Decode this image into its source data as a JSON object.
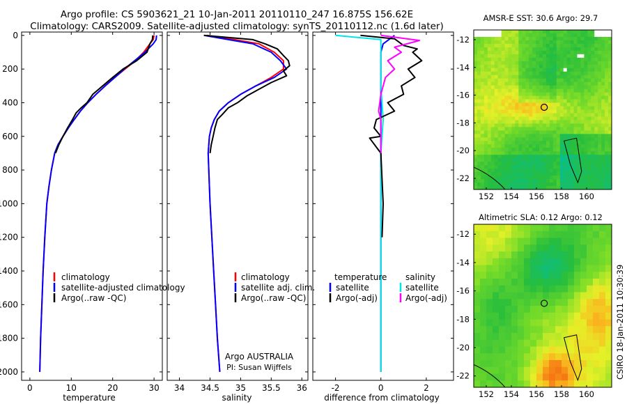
{
  "header": {
    "line1": "Argo profile: CS 5903621_21 10-Jan-2011 20110110_247 16.875S 156.62E",
    "line2": "Climatology: CARS2009. Satellite-adjusted climatology: synTS_20110112.nc (1.6d later)"
  },
  "colors": {
    "climatology": "#ff0000",
    "satellite": "#0000ff",
    "argo": "#000000",
    "salinity_satellite": "#00e5e5",
    "salinity_argo": "#ff00ff"
  },
  "depth_axis": {
    "ticks": [
      "0",
      "200",
      "400",
      "600",
      "800",
      "1000",
      "1200",
      "1400",
      "1600",
      "1800",
      "2000"
    ],
    "ylim": [
      2050,
      -20
    ]
  },
  "chart_data": [
    {
      "type": "line",
      "id": "temperature",
      "xlabel": "temperature",
      "xlim": [
        -2,
        32
      ],
      "xticks": [
        "0",
        "10",
        "20",
        "30"
      ],
      "xtick_values": [
        0,
        10,
        20,
        30
      ],
      "legend": [
        "climatology",
        "satellite-adjusted climatology",
        "Argo(..raw -QC)"
      ],
      "series": [
        {
          "name": "climatology",
          "color": "#ff0000",
          "points": [
            [
              30.0,
              0
            ],
            [
              29.8,
              25
            ],
            [
              29.0,
              50
            ],
            [
              27.5,
              100
            ],
            [
              25.5,
              150
            ],
            [
              23.0,
              200
            ],
            [
              20.5,
              250
            ],
            [
              18.2,
              300
            ],
            [
              16.0,
              350
            ],
            [
              14.0,
              400
            ],
            [
              12.2,
              450
            ],
            [
              10.7,
              500
            ],
            [
              9.3,
              550
            ],
            [
              8.0,
              600
            ],
            [
              6.8,
              650
            ],
            [
              6.0,
              700
            ],
            [
              5.2,
              800
            ],
            [
              4.6,
              900
            ],
            [
              4.1,
              1000
            ],
            [
              3.6,
              1200
            ],
            [
              3.2,
              1400
            ],
            [
              2.9,
              1600
            ],
            [
              2.6,
              1800
            ],
            [
              2.4,
              2000
            ]
          ]
        },
        {
          "name": "satellite-adjusted climatology",
          "color": "#0000ff",
          "points": [
            [
              30.6,
              0
            ],
            [
              30.5,
              25
            ],
            [
              29.8,
              50
            ],
            [
              27.8,
              100
            ],
            [
              25.3,
              150
            ],
            [
              22.8,
              200
            ],
            [
              20.5,
              250
            ],
            [
              18.2,
              300
            ],
            [
              16.0,
              350
            ],
            [
              14.0,
              400
            ],
            [
              12.2,
              450
            ],
            [
              10.7,
              500
            ],
            [
              9.3,
              550
            ],
            [
              8.0,
              600
            ],
            [
              6.8,
              650
            ],
            [
              6.0,
              700
            ],
            [
              5.2,
              800
            ],
            [
              4.6,
              900
            ],
            [
              4.1,
              1000
            ],
            [
              3.6,
              1200
            ],
            [
              3.2,
              1400
            ],
            [
              2.9,
              1600
            ],
            [
              2.6,
              1800
            ],
            [
              2.4,
              2000
            ]
          ]
        },
        {
          "name": "Argo(..raw -QC)",
          "color": "#000000",
          "points": [
            [
              29.7,
              0
            ],
            [
              29.6,
              25
            ],
            [
              29.0,
              50
            ],
            [
              28.3,
              100
            ],
            [
              25.8,
              150
            ],
            [
              22.5,
              200
            ],
            [
              20.0,
              250
            ],
            [
              17.6,
              300
            ],
            [
              15.2,
              350
            ],
            [
              13.8,
              400
            ],
            [
              12.4,
              430
            ],
            [
              11.2,
              460
            ],
            [
              10.3,
              500
            ],
            [
              9.1,
              550
            ],
            [
              8.0,
              600
            ],
            [
              7.0,
              650
            ],
            [
              6.2,
              700
            ]
          ]
        }
      ]
    },
    {
      "type": "line",
      "id": "salinity",
      "xlabel": "salinity",
      "xlim": [
        33.8,
        36.1
      ],
      "xticks": [
        "34",
        "34.5",
        "35",
        "35.5",
        "36"
      ],
      "xtick_values": [
        34,
        34.5,
        35,
        35.5,
        36
      ],
      "legend": [
        "climatology",
        "satellite adj. clim.",
        "Argo(..raw -QC)"
      ],
      "series": [
        {
          "name": "climatology",
          "color": "#ff0000",
          "points": [
            [
              34.45,
              0
            ],
            [
              34.9,
              25
            ],
            [
              35.3,
              50
            ],
            [
              35.55,
              100
            ],
            [
              35.7,
              150
            ],
            [
              35.7,
              200
            ],
            [
              35.5,
              250
            ],
            [
              35.25,
              300
            ],
            [
              35.0,
              350
            ],
            [
              34.8,
              400
            ],
            [
              34.65,
              450
            ],
            [
              34.57,
              500
            ],
            [
              34.52,
              550
            ],
            [
              34.49,
              600
            ],
            [
              34.47,
              700
            ],
            [
              34.48,
              800
            ],
            [
              34.5,
              1000
            ],
            [
              34.53,
              1200
            ],
            [
              34.56,
              1400
            ],
            [
              34.59,
              1600
            ],
            [
              34.62,
              1800
            ],
            [
              34.66,
              2000
            ]
          ]
        },
        {
          "name": "satellite adj. clim.",
          "color": "#0000ff",
          "points": [
            [
              34.4,
              0
            ],
            [
              34.8,
              25
            ],
            [
              35.2,
              50
            ],
            [
              35.5,
              100
            ],
            [
              35.65,
              150
            ],
            [
              35.75,
              200
            ],
            [
              35.55,
              250
            ],
            [
              35.25,
              300
            ],
            [
              35.0,
              350
            ],
            [
              34.8,
              400
            ],
            [
              34.65,
              450
            ],
            [
              34.57,
              500
            ],
            [
              34.52,
              550
            ],
            [
              34.49,
              600
            ],
            [
              34.47,
              700
            ],
            [
              34.48,
              800
            ],
            [
              34.5,
              1000
            ],
            [
              34.53,
              1200
            ],
            [
              34.56,
              1400
            ],
            [
              34.59,
              1600
            ],
            [
              34.62,
              1800
            ],
            [
              34.66,
              2000
            ]
          ]
        },
        {
          "name": "Argo(..raw -QC)",
          "color": "#000000",
          "points": [
            [
              34.4,
              0
            ],
            [
              35.2,
              25
            ],
            [
              35.4,
              50
            ],
            [
              35.6,
              80
            ],
            [
              35.7,
              120
            ],
            [
              35.78,
              150
            ],
            [
              35.8,
              180
            ],
            [
              35.7,
              210
            ],
            [
              35.75,
              240
            ],
            [
              35.5,
              280
            ],
            [
              35.3,
              320
            ],
            [
              35.1,
              360
            ],
            [
              34.95,
              400
            ],
            [
              34.8,
              430
            ],
            [
              34.7,
              470
            ],
            [
              34.62,
              500
            ],
            [
              34.58,
              550
            ],
            [
              34.55,
              600
            ],
            [
              34.52,
              650
            ],
            [
              34.5,
              700
            ]
          ]
        }
      ],
      "annotation_line1": "Argo AUSTRALIA",
      "annotation_line2": "PI: Susan Wijffels"
    },
    {
      "type": "line",
      "id": "difference",
      "xlabel": "difference from climatology",
      "xlim": [
        -3,
        3.2
      ],
      "xticks": [
        "-2",
        "0",
        "2"
      ],
      "xtick_values": [
        -2,
        0,
        2
      ],
      "legend_left_header": "temperature",
      "legend_left": [
        "satellite",
        "Argo(-adj)"
      ],
      "legend_right_header": "salinity",
      "legend_right": [
        "satellite",
        "Argo(-adj)"
      ],
      "series": [
        {
          "name": "temperature satellite",
          "color": "#0000ff",
          "points": [
            [
              0.6,
              0
            ],
            [
              0.1,
              50
            ],
            [
              0,
              100
            ],
            [
              0,
              200
            ],
            [
              0,
              400
            ],
            [
              0,
              1000
            ],
            [
              0,
              2000
            ]
          ]
        },
        {
          "name": "salinity satellite",
          "color": "#00e5e5",
          "points": [
            [
              -2.0,
              0
            ],
            [
              -1.2,
              10
            ],
            [
              0,
              25
            ],
            [
              0,
              100
            ],
            [
              0,
              300
            ],
            [
              0.1,
              500
            ],
            [
              0,
              700
            ],
            [
              0,
              1000
            ],
            [
              0,
              2000
            ]
          ]
        },
        {
          "name": "temperature Argo(-adj)",
          "color": "#000000",
          "points": [
            [
              -0.9,
              0
            ],
            [
              0.6,
              20
            ],
            [
              1.0,
              60
            ],
            [
              1.6,
              80
            ],
            [
              1.4,
              100
            ],
            [
              1.8,
              150
            ],
            [
              1.2,
              200
            ],
            [
              1.5,
              250
            ],
            [
              0.9,
              300
            ],
            [
              1.0,
              350
            ],
            [
              0.3,
              400
            ],
            [
              0.6,
              450
            ],
            [
              -0.2,
              500
            ],
            [
              -0.3,
              550
            ],
            [
              0.0,
              600
            ],
            [
              -0.5,
              610
            ],
            [
              0.0,
              700
            ],
            [
              0.1,
              1000
            ],
            [
              0.05,
              1200
            ]
          ]
        },
        {
          "name": "salinity Argo(-adj)",
          "color": "#ff00ff",
          "points": [
            [
              0,
              0
            ],
            [
              1.7,
              30
            ],
            [
              0.6,
              70
            ],
            [
              0.9,
              100
            ],
            [
              0.3,
              150
            ],
            [
              0.6,
              200
            ],
            [
              0.2,
              250
            ],
            [
              0.0,
              350
            ],
            [
              -0.1,
              450
            ],
            [
              0.0,
              500
            ],
            [
              0.0,
              700
            ]
          ]
        }
      ]
    },
    {
      "type": "heatmap",
      "id": "sst_map",
      "title": "AMSR-E SST: 30.6 Argo: 29.7",
      "xticks": [
        "152",
        "154",
        "156",
        "158",
        "160"
      ],
      "xtick_values": [
        152,
        154,
        156,
        158,
        160
      ],
      "yticks": [
        "-12",
        "-14",
        "-16",
        "-18",
        "-20",
        "-22"
      ],
      "ytick_values": [
        -12,
        -14,
        -16,
        -18,
        -20,
        -22
      ],
      "xlim": [
        151,
        162
      ],
      "ylim": [
        -22.8,
        -11.3
      ],
      "argo_marker": [
        156.62,
        -16.875
      ]
    },
    {
      "type": "heatmap",
      "id": "sla_map",
      "title": "Altimetric SLA: 0.12 Argo: 0.12",
      "xticks": [
        "152",
        "154",
        "156",
        "158",
        "160"
      ],
      "xtick_values": [
        152,
        154,
        156,
        158,
        160
      ],
      "yticks": [
        "-12",
        "-14",
        "-16",
        "-18",
        "-20",
        "-22"
      ],
      "ytick_values": [
        -12,
        -14,
        -16,
        -18,
        -20,
        -22
      ],
      "xlim": [
        151,
        162
      ],
      "ylim": [
        -22.8,
        -11.3
      ],
      "argo_marker": [
        156.62,
        -16.875
      ]
    }
  ],
  "footer_stamp": "CSIRO 18-Jan-2011 10:30:39"
}
